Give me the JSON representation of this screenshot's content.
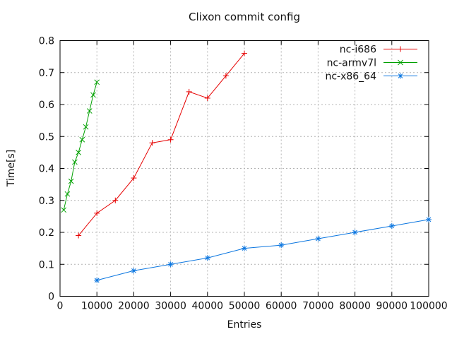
{
  "chart_data": {
    "type": "line",
    "title": "Clixon commit config",
    "xlabel": "Entries",
    "ylabel": "Time[s]",
    "xlim": [
      0,
      100000
    ],
    "ylim": [
      0,
      0.8
    ],
    "xticks": [
      0,
      10000,
      20000,
      30000,
      40000,
      50000,
      60000,
      70000,
      80000,
      90000,
      100000
    ],
    "yticks": [
      0,
      0.1,
      0.2,
      0.3,
      0.4,
      0.5,
      0.6,
      0.7,
      0.8
    ],
    "grid": true,
    "grid_color": "#b4b4b4",
    "border_color": "#000000",
    "legend_position": "top-right-inside",
    "series": [
      {
        "name": "nc-i686",
        "color": "#e60000",
        "marker": "plus",
        "x": [
          5000,
          10000,
          15000,
          20000,
          25000,
          30000,
          35000,
          40000,
          45000,
          50000
        ],
        "y": [
          0.19,
          0.26,
          0.3,
          0.37,
          0.48,
          0.49,
          0.64,
          0.62,
          0.69,
          0.76
        ]
      },
      {
        "name": "nc-armv7l",
        "color": "#00a000",
        "marker": "cross",
        "x": [
          1000,
          2000,
          3000,
          4000,
          5000,
          6000,
          7000,
          8000,
          9000,
          10000
        ],
        "y": [
          0.27,
          0.32,
          0.36,
          0.42,
          0.45,
          0.49,
          0.53,
          0.58,
          0.63,
          0.67
        ]
      },
      {
        "name": "nc-x86_64",
        "color": "#0b76e0",
        "marker": "star",
        "x": [
          10000,
          20000,
          30000,
          40000,
          50000,
          60000,
          70000,
          80000,
          90000,
          100000
        ],
        "y": [
          0.05,
          0.08,
          0.1,
          0.12,
          0.15,
          0.16,
          0.18,
          0.2,
          0.22,
          0.24
        ]
      }
    ]
  }
}
